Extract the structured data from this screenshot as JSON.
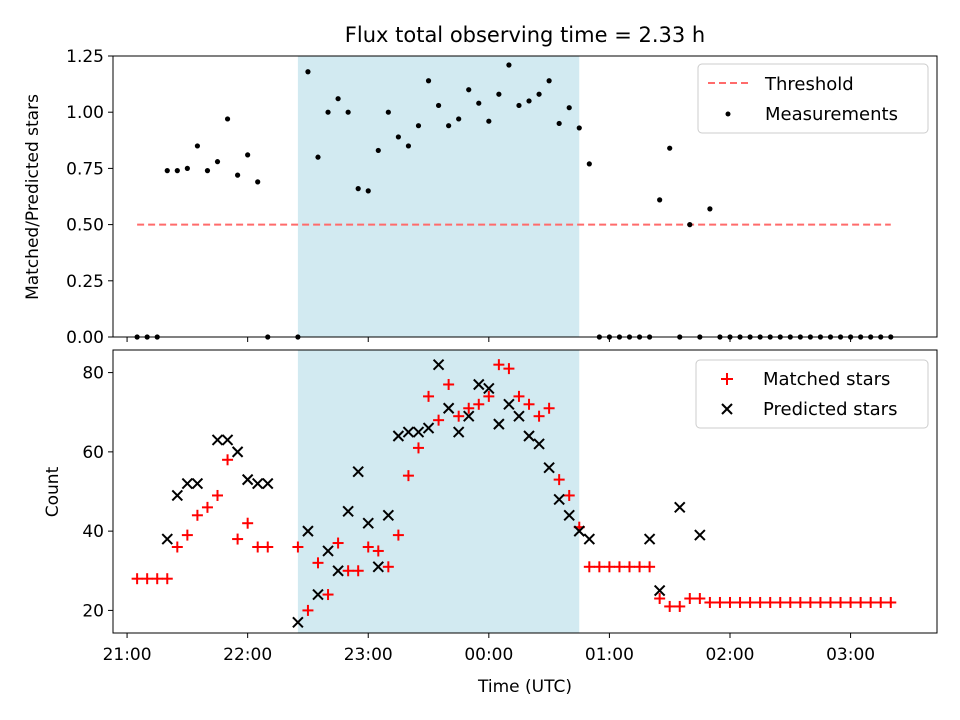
{
  "figure": {
    "title": "Flux total observing time = 2.33 h",
    "xlabel": "Time (UTC)",
    "xticks": [
      {
        "t": 0,
        "label": "21:00"
      },
      {
        "t": 60,
        "label": "22:00"
      },
      {
        "t": 120,
        "label": "23:00"
      },
      {
        "t": 180,
        "label": "00:00"
      },
      {
        "t": 240,
        "label": "01:00"
      },
      {
        "t": 300,
        "label": "02:00"
      },
      {
        "t": 360,
        "label": "03:00"
      }
    ],
    "x_range": [
      "20:53",
      "03:43"
    ],
    "highlight_span": {
      "start": "22:25",
      "end": "00:45",
      "color": "#add8e6"
    }
  },
  "chart_data": [
    {
      "type": "scatter",
      "ylabel": "Matched/Predicted stars",
      "ylim": [
        0,
        1.25
      ],
      "yticks": [
        "0.00",
        "0.25",
        "0.50",
        "0.75",
        "1.00",
        "1.25"
      ],
      "legend_position": "top-right",
      "threshold": {
        "name": "Threshold",
        "value": 0.5,
        "from": "21:05",
        "to": "03:20",
        "color": "#ff6b6b"
      },
      "series": [
        {
          "name": "Measurements",
          "color": "#000000",
          "x": [
            "21:05",
            "21:10",
            "21:15",
            "21:20",
            "21:25",
            "21:30",
            "21:35",
            "21:40",
            "21:45",
            "21:50",
            "21:55",
            "22:00",
            "22:05",
            "22:10",
            "22:25",
            "22:30",
            "22:35",
            "22:40",
            "22:45",
            "22:50",
            "22:55",
            "23:00",
            "23:05",
            "23:10",
            "23:15",
            "23:20",
            "23:25",
            "23:30",
            "23:35",
            "23:40",
            "23:45",
            "23:50",
            "23:55",
            "00:00",
            "00:05",
            "00:10",
            "00:15",
            "00:20",
            "00:25",
            "00:30",
            "00:35",
            "00:40",
            "00:45",
            "00:50",
            "00:55",
            "01:00",
            "01:05",
            "01:10",
            "01:15",
            "01:20",
            "01:25",
            "01:30",
            "01:35",
            "01:40",
            "01:45",
            "01:50",
            "01:55",
            "02:00",
            "02:05",
            "02:10",
            "02:15",
            "02:20",
            "02:25",
            "02:30",
            "02:35",
            "02:40",
            "02:45",
            "02:50",
            "02:55",
            "03:00",
            "03:05",
            "03:10",
            "03:15",
            "03:20"
          ],
          "values": [
            0,
            0,
            0,
            0.74,
            0.74,
            0.75,
            0.85,
            0.74,
            0.78,
            0.97,
            0.72,
            0.81,
            0.69,
            0,
            0,
            1.18,
            0.8,
            1.0,
            1.06,
            1.0,
            0.66,
            0.65,
            0.83,
            1.0,
            0.89,
            0.85,
            0.94,
            1.14,
            1.03,
            0.94,
            0.97,
            1.1,
            1.04,
            0.96,
            1.08,
            1.21,
            1.03,
            1.05,
            1.08,
            1.14,
            0.95,
            1.02,
            0.93,
            0.77,
            0,
            0,
            0,
            0,
            0,
            0,
            0.61,
            0.84,
            0,
            0.5,
            0,
            0.57,
            0,
            0,
            0,
            0,
            0,
            0,
            0,
            0,
            0,
            0,
            0,
            0,
            0,
            0,
            0,
            0,
            0,
            0
          ]
        }
      ]
    },
    {
      "type": "scatter",
      "ylabel": "Count",
      "ylim": [
        14.3,
        85.7
      ],
      "yticks": [
        "20",
        "40",
        "60",
        "80"
      ],
      "legend_position": "top-right",
      "series": [
        {
          "name": "Matched stars",
          "marker": "+",
          "color": "#ff0000",
          "x": [
            "21:05",
            "21:10",
            "21:15",
            "21:20",
            "21:25",
            "21:30",
            "21:35",
            "21:40",
            "21:45",
            "21:50",
            "21:55",
            "22:00",
            "22:05",
            "22:10",
            "22:25",
            "22:30",
            "22:35",
            "22:40",
            "22:45",
            "22:50",
            "22:55",
            "23:00",
            "23:05",
            "23:10",
            "23:15",
            "23:20",
            "23:25",
            "23:30",
            "23:35",
            "23:40",
            "23:45",
            "23:50",
            "23:55",
            "00:00",
            "00:05",
            "00:10",
            "00:15",
            "00:20",
            "00:25",
            "00:30",
            "00:35",
            "00:40",
            "00:45",
            "00:50",
            "00:55",
            "01:00",
            "01:05",
            "01:10",
            "01:15",
            "01:20",
            "01:25",
            "01:30",
            "01:35",
            "01:40",
            "01:45",
            "01:50",
            "01:55",
            "02:00",
            "02:05",
            "02:10",
            "02:15",
            "02:20",
            "02:25",
            "02:30",
            "02:35",
            "02:40",
            "02:45",
            "02:50",
            "02:55",
            "03:00",
            "03:05",
            "03:10",
            "03:15",
            "03:20"
          ],
          "values": [
            28,
            28,
            28,
            28,
            36,
            39,
            44,
            46,
            49,
            58,
            38,
            42,
            36,
            36,
            36,
            20,
            32,
            24,
            37,
            30,
            30,
            36,
            35,
            31,
            39,
            54,
            61,
            74,
            68,
            77,
            69,
            71,
            72,
            74,
            82,
            81,
            74,
            72,
            69,
            71,
            53,
            49,
            41,
            31,
            31,
            31,
            31,
            31,
            31,
            31,
            23,
            21,
            21,
            23,
            23,
            22,
            22,
            22,
            22,
            22,
            22,
            22,
            22,
            22,
            22,
            22,
            22,
            22,
            22,
            22,
            22,
            22,
            22,
            22
          ]
        },
        {
          "name": "Predicted stars",
          "marker": "x",
          "color": "#000000",
          "x": [
            "21:20",
            "21:25",
            "21:30",
            "21:35",
            "21:45",
            "21:50",
            "21:55",
            "22:00",
            "22:05",
            "22:10",
            "22:25",
            "22:30",
            "22:35",
            "22:40",
            "22:45",
            "22:50",
            "22:55",
            "23:00",
            "23:05",
            "23:10",
            "23:15",
            "23:20",
            "23:25",
            "23:30",
            "23:35",
            "23:40",
            "23:45",
            "23:50",
            "23:55",
            "00:00",
            "00:05",
            "00:10",
            "00:15",
            "00:20",
            "00:25",
            "00:30",
            "00:35",
            "00:40",
            "00:45",
            "00:50",
            "01:20",
            "01:25",
            "01:35",
            "01:45"
          ],
          "values": [
            38,
            49,
            52,
            52,
            63,
            63,
            60,
            53,
            52,
            52,
            17,
            40,
            24,
            35,
            30,
            45,
            55,
            42,
            31,
            44,
            64,
            65,
            65,
            66,
            82,
            71,
            65,
            69,
            77,
            76,
            67,
            72,
            69,
            64,
            62,
            56,
            48,
            44,
            40,
            38,
            38,
            25,
            46,
            39
          ]
        }
      ]
    }
  ]
}
